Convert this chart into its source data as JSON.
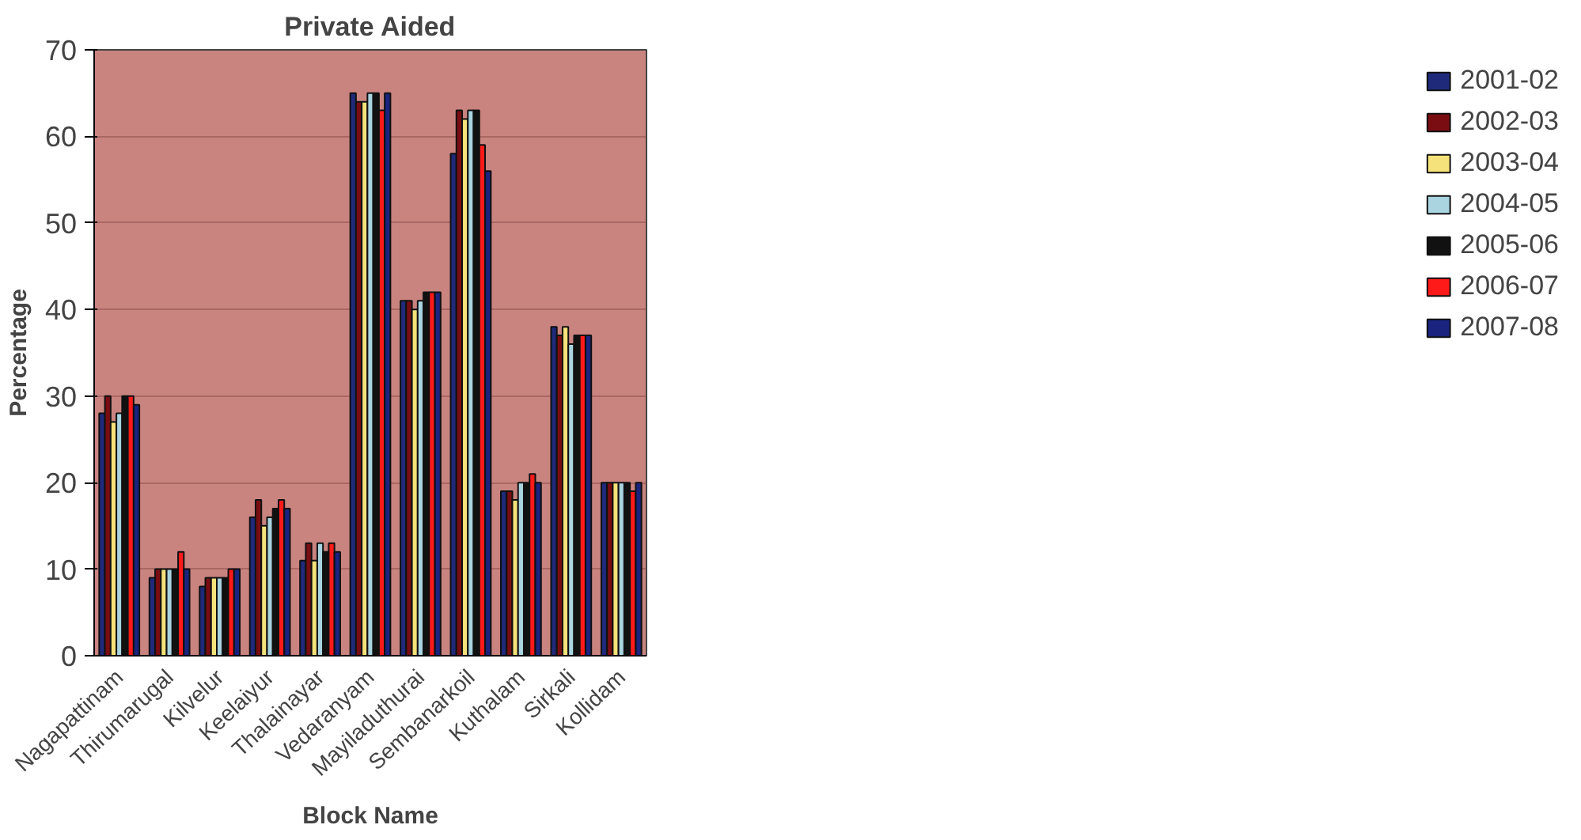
{
  "chart_data": {
    "type": "bar",
    "title": "Private Aided",
    "xlabel": "Block Name",
    "ylabel": "Percentage",
    "categories": [
      "Nagapattinam",
      "Thirumarugal",
      "Kilvelur",
      "Keelaiyur",
      "Thalainayar",
      "Vedaranyam",
      "Mayiladuthurai",
      "Sembanarkoil",
      "Kuthalam",
      "Sirkali",
      "Kollidam"
    ],
    "series": [
      {
        "name": "2001-02",
        "color": "#1f2a7a",
        "values": [
          28,
          9,
          8,
          16,
          11,
          65,
          41,
          58,
          19,
          38,
          20
        ]
      },
      {
        "name": "2002-03",
        "color": "#7a0d12",
        "values": [
          30,
          10,
          9,
          18,
          13,
          64,
          41,
          63,
          19,
          37,
          20
        ]
      },
      {
        "name": "2003-04",
        "color": "#f5e27a",
        "values": [
          27,
          10,
          9,
          15,
          11,
          64,
          40,
          62,
          18,
          38,
          20
        ]
      },
      {
        "name": "2004-05",
        "color": "#a9d4e0",
        "values": [
          28,
          10,
          9,
          16,
          13,
          65,
          41,
          63,
          20,
          36,
          20
        ]
      },
      {
        "name": "2005-06",
        "color": "#111111",
        "values": [
          30,
          10,
          9,
          17,
          12,
          65,
          42,
          63,
          20,
          37,
          20
        ]
      },
      {
        "name": "2006-07",
        "color": "#ff1a1a",
        "values": [
          30,
          12,
          10,
          18,
          13,
          63,
          42,
          59,
          21,
          37,
          19
        ]
      },
      {
        "name": "2007-08",
        "color": "#1a237e",
        "values": [
          29,
          10,
          10,
          17,
          12,
          65,
          42,
          56,
          20,
          37,
          20
        ]
      }
    ],
    "ylim": [
      0,
      70
    ],
    "yticks": [
      0,
      10,
      20,
      30,
      40,
      50,
      60,
      70
    ],
    "grid": "y",
    "legend": "right"
  }
}
